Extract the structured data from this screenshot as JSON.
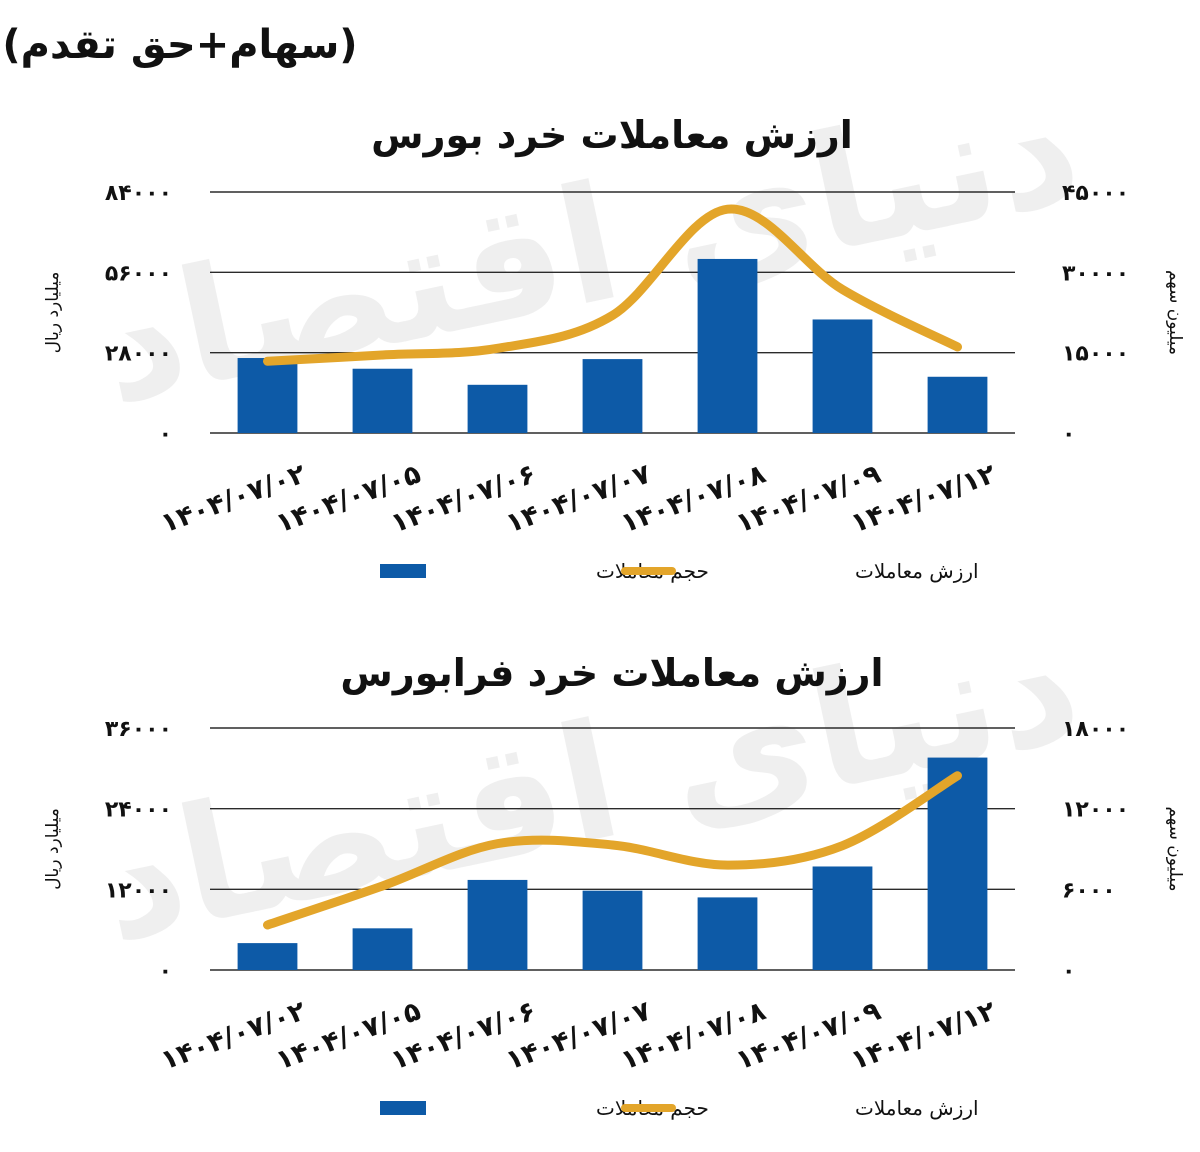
{
  "header": {
    "note": "(سهام+حق تقدم)"
  },
  "chart_data": [
    {
      "type": "bar",
      "title": "ارزش معاملات خرد بورس",
      "categories": [
        "۱۴۰۴/۰۷/۰۲",
        "۱۴۰۴/۰۷/۰۵",
        "۱۴۰۴/۰۷/۰۶",
        "۱۴۰۴/۰۷/۰۷",
        "۱۴۰۴/۰۷/۰۸",
        "۱۴۰۴/۰۷/۰۹",
        "۱۴۰۴/۰۷/۱۲"
      ],
      "series": [
        {
          "name": "حجم معاملات",
          "type": "bar",
          "axis": "right",
          "color": "#0d5aa7",
          "values": [
            14000,
            12000,
            9000,
            13800,
            32500,
            21200,
            10500
          ]
        },
        {
          "name": "ارزش معاملات",
          "type": "line",
          "axis": "left",
          "color": "#e3a52a",
          "values": [
            25000,
            27200,
            29500,
            41000,
            78000,
            50000,
            30000
          ]
        }
      ],
      "y_left": {
        "label": "میلیارد ریال",
        "ylim": [
          0,
          84000
        ],
        "ticks": [
          "۰",
          "۲۸۰۰۰",
          "۵۶۰۰۰",
          "۸۴۰۰۰"
        ]
      },
      "y_right": {
        "label": "میلیون سهم",
        "ylim": [
          0,
          45000
        ],
        "ticks": [
          "۰",
          "۱۵۰۰۰",
          "۳۰۰۰۰",
          "۴۵۰۰۰"
        ]
      },
      "grid": true,
      "legend": "bottom"
    },
    {
      "type": "bar",
      "title": "ارزش معاملات خرد فرابورس",
      "categories": [
        "۱۴۰۴/۰۷/۰۲",
        "۱۴۰۴/۰۷/۰۵",
        "۱۴۰۴/۰۷/۰۶",
        "۱۴۰۴/۰۷/۰۷",
        "۱۴۰۴/۰۷/۰۸",
        "۱۴۰۴/۰۷/۰۹",
        "۱۴۰۴/۰۷/۱۲"
      ],
      "series": [
        {
          "name": "حجم معاملات",
          "type": "bar",
          "axis": "right",
          "color": "#0d5aa7",
          "values": [
            2000,
            3100,
            6700,
            5900,
            5400,
            7700,
            15800
          ]
        },
        {
          "name": "ارزش معاملات",
          "type": "line",
          "axis": "left",
          "color": "#e3a52a",
          "values": [
            6700,
            12500,
            18800,
            18600,
            15600,
            18500,
            28900
          ]
        }
      ],
      "y_left": {
        "label": "میلیارد ریال",
        "ylim": [
          0,
          36000
        ],
        "ticks": [
          "۰",
          "۱۲۰۰۰",
          "۲۴۰۰۰",
          "۳۶۰۰۰"
        ]
      },
      "y_right": {
        "label": "میلیون سهم",
        "ylim": [
          0,
          18000
        ],
        "ticks": [
          "۰",
          "۶۰۰۰",
          "۱۲۰۰۰",
          "۱۸۰۰۰"
        ]
      },
      "grid": true,
      "legend": "bottom"
    }
  ],
  "watermark": "دنیای اقتصاد"
}
